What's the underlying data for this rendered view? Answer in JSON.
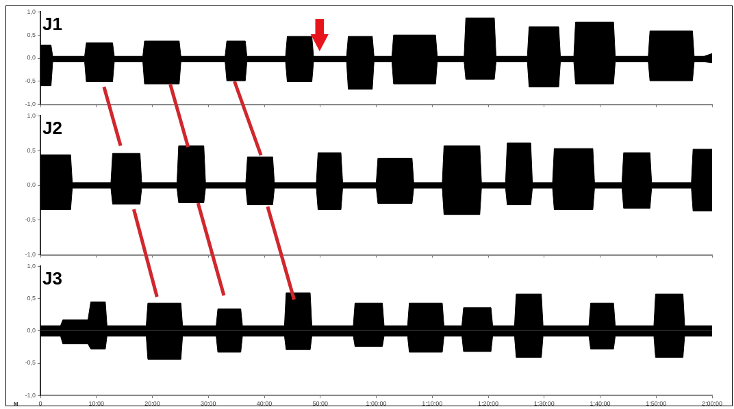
{
  "chart_data": [
    {
      "type": "area",
      "title": "J1",
      "xlim": [
        0,
        120
      ],
      "ylim": [
        -1,
        1
      ],
      "tick_labels": "y",
      "xticks": [
        {
          "value": 0,
          "label": null
        },
        {
          "value": 10,
          "label": null
        },
        {
          "value": 20,
          "label": null
        },
        {
          "value": 30,
          "label": null
        },
        {
          "value": 40,
          "label": null
        },
        {
          "value": 50,
          "label": null
        },
        {
          "value": 60,
          "label": null
        },
        {
          "value": 70,
          "label": null
        },
        {
          "value": 80,
          "label": null
        },
        {
          "value": 90,
          "label": null
        },
        {
          "value": 100,
          "label": null
        },
        {
          "value": 110,
          "label": null
        },
        {
          "value": 120,
          "label": null
        }
      ],
      "yticks": [
        {
          "value": -1,
          "label": "-1,0"
        },
        {
          "value": -0.5,
          "label": "-0,5"
        },
        {
          "value": 0,
          "label": "0,0"
        },
        {
          "value": 0.5,
          "label": "0,5"
        },
        {
          "value": 1,
          "label": "1,0"
        }
      ],
      "x": [
        0,
        1.9,
        2.2,
        7.9,
        8.2,
        12.9,
        13.2,
        18.3,
        18.6,
        24.8,
        25.1,
        33.0,
        33.3,
        36.6,
        36.9,
        43.8,
        44.1,
        48.5,
        48.8,
        54.7,
        55.0,
        59.3,
        59.6,
        62.8,
        63.1,
        70.6,
        70.9,
        75.7,
        76.0,
        81.1,
        81.4,
        87.0,
        87.3,
        92.6,
        92.9,
        95.3,
        95.6,
        102.4,
        102.7,
        108.6,
        108.9,
        116.5,
        116.8,
        118.6,
        120
      ],
      "series": [
        {
          "color": "#000000",
          "values": [
            0.28,
            0.28,
            0.04,
            0.04,
            0.33,
            0.33,
            0.04,
            0.04,
            0.37,
            0.37,
            0.04,
            0.04,
            0.37,
            0.37,
            0.04,
            0.04,
            0.47,
            0.47,
            0.04,
            0.04,
            0.47,
            0.47,
            0.04,
            0.04,
            0.5,
            0.5,
            0.04,
            0.04,
            0.87,
            0.87,
            0.04,
            0.04,
            0.68,
            0.68,
            0.04,
            0.04,
            0.78,
            0.78,
            0.04,
            0.04,
            0.59,
            0.59,
            0.04,
            0.04,
            0.1
          ]
        },
        {
          "color": "#000000",
          "values": [
            -0.6,
            -0.6,
            -0.08,
            -0.08,
            -0.51,
            -0.51,
            -0.08,
            -0.08,
            -0.56,
            -0.56,
            -0.08,
            -0.08,
            -0.49,
            -0.49,
            -0.08,
            -0.08,
            -0.51,
            -0.51,
            -0.08,
            -0.08,
            -0.67,
            -0.67,
            -0.08,
            -0.08,
            -0.56,
            -0.56,
            -0.08,
            -0.08,
            -0.46,
            -0.46,
            -0.08,
            -0.08,
            -0.62,
            -0.62,
            -0.08,
            -0.08,
            -0.56,
            -0.56,
            -0.08,
            -0.08,
            -0.49,
            -0.49,
            -0.08,
            -0.08,
            -0.1
          ]
        }
      ]
    },
    {
      "type": "area",
      "title": "J2",
      "xlim": [
        0,
        120
      ],
      "ylim": [
        -1,
        1
      ],
      "tick_labels": "y",
      "xticks": [
        {
          "value": 0,
          "label": null
        },
        {
          "value": 10,
          "label": null
        },
        {
          "value": 20,
          "label": null
        },
        {
          "value": 30,
          "label": null
        },
        {
          "value": 40,
          "label": null
        },
        {
          "value": 50,
          "label": null
        },
        {
          "value": 60,
          "label": null
        },
        {
          "value": 70,
          "label": null
        },
        {
          "value": 80,
          "label": null
        },
        {
          "value": 90,
          "label": null
        },
        {
          "value": 100,
          "label": null
        },
        {
          "value": 110,
          "label": null
        },
        {
          "value": 120,
          "label": null
        }
      ],
      "yticks": [
        {
          "value": -1,
          "label": "-1,0"
        },
        {
          "value": -0.5,
          "label": "-0,5"
        },
        {
          "value": 0,
          "label": "0,0"
        },
        {
          "value": 0.5,
          "label": "0,5"
        },
        {
          "value": 1,
          "label": "1,0"
        }
      ],
      "x": [
        0,
        5.4,
        5.7,
        12.6,
        12.9,
        17.8,
        18.1,
        24.4,
        24.7,
        29.2,
        29.5,
        36.7,
        37.0,
        41.5,
        41.8,
        49.3,
        49.6,
        53.7,
        54.0,
        60.0,
        60.3,
        66.4,
        66.7,
        71.8,
        72.1,
        78.5,
        78.8,
        83.1,
        83.4,
        87.6,
        87.9,
        91.5,
        91.8,
        98.7,
        99.0,
        103.9,
        104.2,
        108.9,
        109.2,
        116.3,
        116.6,
        120
      ],
      "series": [
        {
          "color": "#000000",
          "values": [
            0.44,
            0.44,
            0.04,
            0.04,
            0.46,
            0.46,
            0.04,
            0.04,
            0.57,
            0.57,
            0.04,
            0.04,
            0.41,
            0.41,
            0.04,
            0.04,
            0.47,
            0.47,
            0.04,
            0.04,
            0.39,
            0.39,
            0.04,
            0.04,
            0.57,
            0.57,
            0.04,
            0.04,
            0.61,
            0.61,
            0.04,
            0.04,
            0.53,
            0.53,
            0.04,
            0.04,
            0.47,
            0.47,
            0.04,
            0.04,
            0.52,
            0.52
          ]
        },
        {
          "color": "#000000",
          "values": [
            -0.35,
            -0.35,
            -0.04,
            -0.04,
            -0.27,
            -0.27,
            -0.04,
            -0.04,
            -0.25,
            -0.25,
            -0.04,
            -0.04,
            -0.28,
            -0.28,
            -0.04,
            -0.04,
            -0.35,
            -0.35,
            -0.04,
            -0.04,
            -0.26,
            -0.26,
            -0.04,
            -0.04,
            -0.42,
            -0.42,
            -0.04,
            -0.04,
            -0.28,
            -0.28,
            -0.04,
            -0.04,
            -0.35,
            -0.35,
            -0.04,
            -0.04,
            -0.33,
            -0.33,
            -0.04,
            -0.04,
            -0.37,
            -0.37
          ]
        }
      ]
    },
    {
      "type": "area",
      "title": "J3",
      "xlim": [
        0,
        120
      ],
      "ylim": [
        -1,
        1
      ],
      "annotations": [
        "M"
      ],
      "xticks": [
        {
          "value": 0,
          "label": "0"
        },
        {
          "value": 10,
          "label": "10:00"
        },
        {
          "value": 20,
          "label": "20:00"
        },
        {
          "value": 30,
          "label": "30:00"
        },
        {
          "value": 40,
          "label": "40:00"
        },
        {
          "value": 50,
          "label": "50:00"
        },
        {
          "value": 60,
          "label": "1:00:00"
        },
        {
          "value": 70,
          "label": "1:10:00"
        },
        {
          "value": 80,
          "label": "1:20:00"
        },
        {
          "value": 90,
          "label": "1:30:00"
        },
        {
          "value": 100,
          "label": "1:40:00"
        },
        {
          "value": 110,
          "label": "1:50:00"
        },
        {
          "value": 120,
          "label": "2:00:00"
        }
      ],
      "yticks": [
        {
          "value": -1,
          "label": "-1,0"
        },
        {
          "value": -0.5,
          "label": "-0,5"
        },
        {
          "value": 0,
          "label": "0,0"
        },
        {
          "value": 0.5,
          "label": "0,5"
        },
        {
          "value": 1,
          "label": "1,0"
        }
      ],
      "x": [
        0,
        3.6,
        4.0,
        8.5,
        9.0,
        11.6,
        11.9,
        18.9,
        19.2,
        25.1,
        25.4,
        31.4,
        31.7,
        35.8,
        36.1,
        43.6,
        43.9,
        48.2,
        48.5,
        55.9,
        56.2,
        61.1,
        61.4,
        65.6,
        65.9,
        71.8,
        72.1,
        75.3,
        75.6,
        80.5,
        80.8,
        84.7,
        85.0,
        89.5,
        89.8,
        98.0,
        98.3,
        102.4,
        102.7,
        109.6,
        109.9,
        114.8,
        115.1,
        120
      ],
      "series": [
        {
          "color": "#000000",
          "values": [
            0.08,
            0.08,
            0.17,
            0.17,
            0.45,
            0.45,
            0.08,
            0.08,
            0.43,
            0.43,
            0.08,
            0.08,
            0.34,
            0.34,
            0.08,
            0.08,
            0.59,
            0.59,
            0.08,
            0.08,
            0.43,
            0.43,
            0.08,
            0.08,
            0.43,
            0.43,
            0.08,
            0.08,
            0.36,
            0.36,
            0.08,
            0.08,
            0.57,
            0.57,
            0.08,
            0.08,
            0.43,
            0.43,
            0.08,
            0.08,
            0.57,
            0.57,
            0.08,
            0.08
          ]
        },
        {
          "color": "#000000",
          "values": [
            -0.08,
            -0.08,
            -0.2,
            -0.2,
            -0.28,
            -0.28,
            -0.08,
            -0.08,
            -0.44,
            -0.44,
            -0.08,
            -0.08,
            -0.33,
            -0.33,
            -0.08,
            -0.08,
            -0.29,
            -0.29,
            -0.08,
            -0.08,
            -0.24,
            -0.24,
            -0.08,
            -0.08,
            -0.33,
            -0.33,
            -0.08,
            -0.08,
            -0.32,
            -0.32,
            -0.08,
            -0.08,
            -0.41,
            -0.41,
            -0.08,
            -0.08,
            -0.28,
            -0.28,
            -0.08,
            -0.08,
            -0.41,
            -0.41,
            -0.08,
            -0.08
          ]
        }
      ]
    }
  ]
}
